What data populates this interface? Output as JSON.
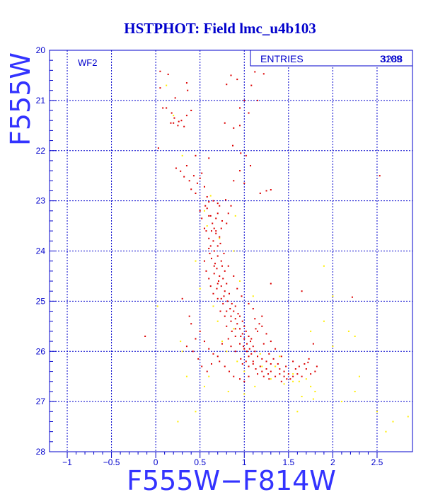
{
  "chart_data": {
    "type": "scatter",
    "title": "HSTPHOT: Field lmc_u4b103",
    "xlabel": "F555W−F814W",
    "ylabel": "F555W",
    "xlim": [
      -1.2,
      2.9
    ],
    "ylim": [
      28,
      20
    ],
    "y_inverted": true,
    "x_ticks": [
      -1,
      -0.5,
      0,
      0.5,
      1,
      1.5,
      2,
      2.5
    ],
    "x_tick_labels": [
      "−1",
      "−0.5",
      "0",
      "0.5",
      "1",
      "1.5",
      "2",
      "2.5"
    ],
    "y_ticks": [
      20,
      21,
      22,
      23,
      24,
      25,
      26,
      27,
      28
    ],
    "y_tick_labels": [
      "20",
      "21",
      "22",
      "23",
      "24",
      "25",
      "26",
      "27",
      "28"
    ],
    "grid": true,
    "field_label": "WF2",
    "stats_box": {
      "label": "ENTRIES",
      "value": "3109",
      "value_overlay": "3288"
    },
    "colors": {
      "axis": "#0000cc",
      "grid": "#0000cc",
      "red_points": "#dd0000",
      "yellow_points": "#ffee00"
    },
    "series": [
      {
        "color": "red",
        "points": [
          [
            0.05,
            20.42
          ],
          [
            0.14,
            20.48
          ],
          [
            0.35,
            20.65
          ],
          [
            0.22,
            20.95
          ],
          [
            0.05,
            20.75
          ],
          [
            0.36,
            20.8
          ],
          [
            0.85,
            20.5
          ],
          [
            0.92,
            20.58
          ],
          [
            0.8,
            20.68
          ],
          [
            1.08,
            20.7
          ],
          [
            1.0,
            21.0
          ],
          [
            1.15,
            21.0
          ],
          [
            0.95,
            21.15
          ],
          [
            1.22,
            20.47
          ],
          [
            1.12,
            20.43
          ],
          [
            1.05,
            21.25
          ],
          [
            0.12,
            21.15
          ],
          [
            0.18,
            21.25
          ],
          [
            0.21,
            21.35
          ],
          [
            0.26,
            21.42
          ],
          [
            0.17,
            21.45
          ],
          [
            0.29,
            21.4
          ],
          [
            0.35,
            21.3
          ],
          [
            0.25,
            21.5
          ],
          [
            0.32,
            21.52
          ],
          [
            0.4,
            21.2
          ],
          [
            0.08,
            21.15
          ],
          [
            0.2,
            21.45
          ],
          [
            0.78,
            21.45
          ],
          [
            0.88,
            21.55
          ],
          [
            0.95,
            21.5
          ],
          [
            0.87,
            21.9
          ],
          [
            0.96,
            22.05
          ],
          [
            0.03,
            21.95
          ],
          [
            0.23,
            22.35
          ],
          [
            0.6,
            22.15
          ],
          [
            0.45,
            22.1
          ],
          [
            0.52,
            22.45
          ],
          [
            1.02,
            22.1
          ],
          [
            1.07,
            22.3
          ],
          [
            0.95,
            22.4
          ],
          [
            0.88,
            22.6
          ],
          [
            1.0,
            22.65
          ],
          [
            1.25,
            22.8
          ],
          [
            1.3,
            22.78
          ],
          [
            1.18,
            22.85
          ],
          [
            2.53,
            22.5
          ],
          [
            0.38,
            22.6
          ],
          [
            0.32,
            22.52
          ],
          [
            0.35,
            22.3
          ],
          [
            0.28,
            22.41
          ],
          [
            0.43,
            22.5
          ],
          [
            0.47,
            22.65
          ],
          [
            0.5,
            22.55
          ],
          [
            0.55,
            22.72
          ],
          [
            0.4,
            22.77
          ],
          [
            0.45,
            22.85
          ],
          [
            0.58,
            22.92
          ],
          [
            0.6,
            23.02
          ],
          [
            0.65,
            23.0
          ],
          [
            0.7,
            23.05
          ],
          [
            0.72,
            23.1
          ],
          [
            0.79,
            22.98
          ],
          [
            0.85,
            23.1
          ],
          [
            0.82,
            23.25
          ],
          [
            0.68,
            23.35
          ],
          [
            0.75,
            23.4
          ],
          [
            0.8,
            23.45
          ],
          [
            0.66,
            23.55
          ],
          [
            0.57,
            23.6
          ],
          [
            0.55,
            23.55
          ],
          [
            0.52,
            23.35
          ],
          [
            0.5,
            23.2
          ],
          [
            0.58,
            23.15
          ],
          [
            0.62,
            23.3
          ],
          [
            0.63,
            23.6
          ],
          [
            0.6,
            23.75
          ],
          [
            0.65,
            23.8
          ],
          [
            0.68,
            23.65
          ],
          [
            0.72,
            23.72
          ],
          [
            0.7,
            23.9
          ],
          [
            0.66,
            24.0
          ],
          [
            0.61,
            24.05
          ],
          [
            0.63,
            24.15
          ],
          [
            0.7,
            24.1
          ],
          [
            0.74,
            24.2
          ],
          [
            0.67,
            24.25
          ],
          [
            0.69,
            24.35
          ],
          [
            0.75,
            24.3
          ],
          [
            0.78,
            24.4
          ],
          [
            0.72,
            24.5
          ],
          [
            0.66,
            24.45
          ],
          [
            0.71,
            24.6
          ],
          [
            0.76,
            24.55
          ],
          [
            0.8,
            24.65
          ],
          [
            0.74,
            24.7
          ],
          [
            0.69,
            24.75
          ],
          [
            0.78,
            24.8
          ],
          [
            0.83,
            24.85
          ],
          [
            0.77,
            24.9
          ],
          [
            0.81,
            25.0
          ],
          [
            0.86,
            25.05
          ],
          [
            0.9,
            25.1
          ],
          [
            0.84,
            25.15
          ],
          [
            0.88,
            25.2
          ],
          [
            0.93,
            25.25
          ],
          [
            0.95,
            25.3
          ],
          [
            0.9,
            25.35
          ],
          [
            0.98,
            25.4
          ],
          [
            0.92,
            25.45
          ],
          [
            1.0,
            25.5
          ],
          [
            0.95,
            25.55
          ],
          [
            1.02,
            25.6
          ],
          [
            0.98,
            25.65
          ],
          [
            1.05,
            25.7
          ],
          [
            1.0,
            25.75
          ],
          [
            1.07,
            25.8
          ],
          [
            1.03,
            25.85
          ],
          [
            1.1,
            25.9
          ],
          [
            1.06,
            25.95
          ],
          [
            1.12,
            26.0
          ],
          [
            1.08,
            26.05
          ],
          [
            1.15,
            26.1
          ],
          [
            1.2,
            26.15
          ],
          [
            1.25,
            26.2
          ],
          [
            1.3,
            26.25
          ],
          [
            1.35,
            26.3
          ],
          [
            1.4,
            26.35
          ],
          [
            1.45,
            26.4
          ],
          [
            1.5,
            26.45
          ],
          [
            1.55,
            26.5
          ],
          [
            1.52,
            26.55
          ],
          [
            1.45,
            26.5
          ],
          [
            1.4,
            26.45
          ],
          [
            1.3,
            26.4
          ],
          [
            1.25,
            26.35
          ],
          [
            1.18,
            26.3
          ],
          [
            1.1,
            26.25
          ],
          [
            1.02,
            26.2
          ],
          [
            0.96,
            26.15
          ],
          [
            0.9,
            26.0
          ],
          [
            0.85,
            25.9
          ],
          [
            0.82,
            25.75
          ],
          [
            0.86,
            25.6
          ],
          [
            0.8,
            25.5
          ],
          [
            0.85,
            25.4
          ],
          [
            0.78,
            25.3
          ],
          [
            0.73,
            25.2
          ],
          [
            0.76,
            25.05
          ],
          [
            0.7,
            24.95
          ],
          [
            0.65,
            24.85
          ],
          [
            0.62,
            24.7
          ],
          [
            0.6,
            24.55
          ],
          [
            0.57,
            24.4
          ],
          [
            0.55,
            24.2
          ],
          [
            0.6,
            23.95
          ],
          [
            1.12,
            25.35
          ],
          [
            1.2,
            25.5
          ],
          [
            1.25,
            25.65
          ],
          [
            1.3,
            25.8
          ],
          [
            1.35,
            25.95
          ],
          [
            1.42,
            26.1
          ],
          [
            1.55,
            26.2
          ],
          [
            1.62,
            26.3
          ],
          [
            1.7,
            26.35
          ],
          [
            1.75,
            26.45
          ],
          [
            1.8,
            26.4
          ],
          [
            1.65,
            26.5
          ],
          [
            0.4,
            25.45
          ],
          [
            0.5,
            25.6
          ],
          [
            0.45,
            25.75
          ],
          [
            0.55,
            25.8
          ],
          [
            0.6,
            25.95
          ],
          [
            0.65,
            26.05
          ],
          [
            0.72,
            26.2
          ],
          [
            0.78,
            26.3
          ],
          [
            0.83,
            26.4
          ],
          [
            0.88,
            26.5
          ],
          [
            0.95,
            26.55
          ],
          [
            1.0,
            26.6
          ],
          [
            0.92,
            24.75
          ],
          [
            0.97,
            24.9
          ],
          [
            1.05,
            25.05
          ],
          [
            1.1,
            25.15
          ],
          [
            0.88,
            24.5
          ],
          [
            0.82,
            24.3
          ],
          [
            0.77,
            24.05
          ],
          [
            0.73,
            23.85
          ],
          [
            0.68,
            23.6
          ],
          [
            0.64,
            23.45
          ],
          [
            0.6,
            23.3
          ],
          [
            0.56,
            23.1
          ],
          [
            0.3,
            24.95
          ],
          [
            0.38,
            25.3
          ],
          [
            0.42,
            26.0
          ],
          [
            0.48,
            26.15
          ],
          [
            0.35,
            25.9
          ],
          [
            0.52,
            26.3
          ],
          [
            0.58,
            26.4
          ],
          [
            0.63,
            26.25
          ],
          [
            0.7,
            26.1
          ],
          [
            0.75,
            25.85
          ],
          [
            0.9,
            25.7
          ],
          [
            0.95,
            25.85
          ],
          [
            1.15,
            25.6
          ],
          [
            1.22,
            25.85
          ],
          [
            1.28,
            26.05
          ],
          [
            1.33,
            26.15
          ],
          [
            1.38,
            26.25
          ],
          [
            1.47,
            26.3
          ],
          [
            1.58,
            26.35
          ],
          [
            1.6,
            26.45
          ],
          [
            1.68,
            26.25
          ],
          [
            1.73,
            26.15
          ],
          [
            1.48,
            26.55
          ],
          [
            1.42,
            26.6
          ],
          [
            1.35,
            26.5
          ],
          [
            1.27,
            26.45
          ],
          [
            1.2,
            26.4
          ],
          [
            1.13,
            26.35
          ],
          [
            1.05,
            26.3
          ],
          [
            0.98,
            26.25
          ],
          [
            1.03,
            26.0
          ],
          [
            0.99,
            25.9
          ],
          [
            1.08,
            25.75
          ],
          [
            1.13,
            25.55
          ],
          [
            1.17,
            25.45
          ],
          [
            1.2,
            25.3
          ],
          [
            -0.12,
            25.7
          ],
          [
            1.3,
            24.65
          ],
          [
            1.65,
            24.8
          ],
          [
            2.22,
            24.92
          ],
          [
            1.78,
            25.85
          ],
          [
            1.72,
            26.22
          ],
          [
            1.82,
            26.3
          ],
          [
            0.7,
            23.25
          ],
          [
            0.74,
            23.55
          ],
          [
            0.62,
            23.9
          ],
          [
            0.66,
            24.3
          ],
          [
            0.7,
            24.65
          ],
          [
            0.74,
            24.95
          ],
          [
            0.8,
            25.2
          ],
          [
            0.85,
            25.3
          ],
          [
            0.9,
            25.55
          ],
          [
            0.96,
            25.7
          ],
          [
            1.0,
            25.95
          ],
          [
            1.05,
            26.1
          ],
          [
            1.1,
            26.2
          ],
          [
            1.15,
            26.45
          ],
          [
            1.22,
            26.5
          ],
          [
            1.28,
            26.55
          ],
          [
            1.05,
            26.5
          ]
        ]
      },
      {
        "color": "yellow",
        "points": [
          [
            0.12,
            20.7
          ],
          [
            0.2,
            21.3
          ],
          [
            0.3,
            22.1
          ],
          [
            0.55,
            23.2
          ],
          [
            0.62,
            22.9
          ],
          [
            0.9,
            23.3
          ],
          [
            0.88,
            24.0
          ],
          [
            0.95,
            24.6
          ],
          [
            1.1,
            24.9
          ],
          [
            0.65,
            25.1
          ],
          [
            0.7,
            25.4
          ],
          [
            0.88,
            25.55
          ],
          [
            0.75,
            25.8
          ],
          [
            0.92,
            26.2
          ],
          [
            1.2,
            26.3
          ],
          [
            1.3,
            26.55
          ],
          [
            1.45,
            26.65
          ],
          [
            1.55,
            26.6
          ],
          [
            1.62,
            26.6
          ],
          [
            1.7,
            26.55
          ],
          [
            1.75,
            26.7
          ],
          [
            1.8,
            26.8
          ],
          [
            1.65,
            26.9
          ],
          [
            1.9,
            25.4
          ],
          [
            1.75,
            25.6
          ],
          [
            2.0,
            25.9
          ],
          [
            2.25,
            25.7
          ],
          [
            2.18,
            25.6
          ],
          [
            1.9,
            24.3
          ],
          [
            2.0,
            24.9
          ],
          [
            2.3,
            26.5
          ],
          [
            2.25,
            26.8
          ],
          [
            2.1,
            27.0
          ],
          [
            2.5,
            27.2
          ],
          [
            2.68,
            27.4
          ],
          [
            2.6,
            27.6
          ],
          [
            2.85,
            27.3
          ],
          [
            1.6,
            27.2
          ],
          [
            1.78,
            26.95
          ],
          [
            0.55,
            26.7
          ],
          [
            0.35,
            26.5
          ],
          [
            0.3,
            26.0
          ],
          [
            0.28,
            25.8
          ],
          [
            0.6,
            26.5
          ],
          [
            0.82,
            26.8
          ],
          [
            1.0,
            26.85
          ],
          [
            1.12,
            26.7
          ],
          [
            0.45,
            27.2
          ],
          [
            0.25,
            27.4
          ],
          [
            0.02,
            25.1
          ],
          [
            0.5,
            24.75
          ],
          [
            0.45,
            24.2
          ],
          [
            1.4,
            26.1
          ],
          [
            1.55,
            26.45
          ],
          [
            1.35,
            26.3
          ],
          [
            1.18,
            26.05
          ],
          [
            0.8,
            26.0
          ],
          [
            1.0,
            26.4
          ],
          [
            0.58,
            23.5
          ],
          [
            0.72,
            23.75
          ]
        ]
      }
    ]
  }
}
